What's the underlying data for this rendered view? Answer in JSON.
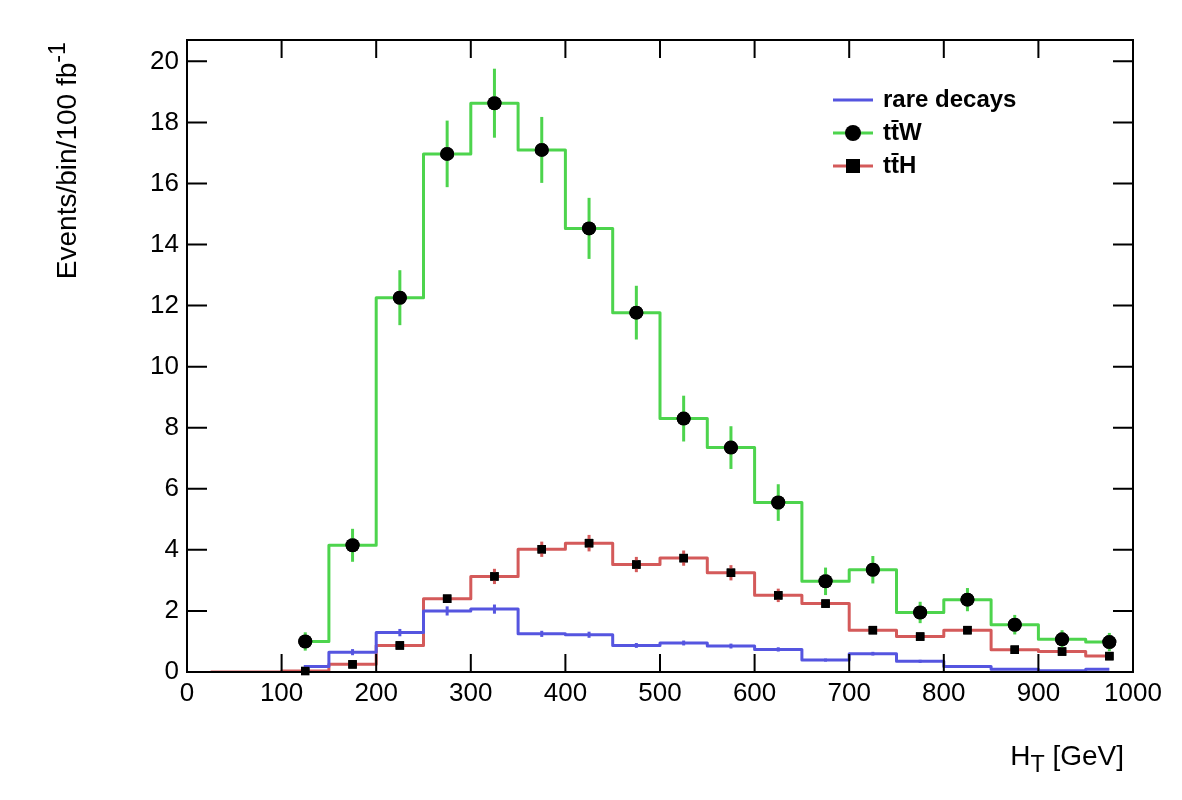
{
  "chart_data": {
    "type": "step",
    "xlabel": "H$_{T}$ [GeV]",
    "ylabel": "Events/bin/100 fb$^{-1}$",
    "x": [
      25,
      75,
      125,
      175,
      225,
      275,
      325,
      375,
      425,
      475,
      525,
      575,
      625,
      675,
      725,
      775,
      825,
      875,
      925,
      975
    ],
    "xlim": [
      0,
      1000
    ],
    "xticks": [
      0,
      100,
      200,
      300,
      400,
      500,
      600,
      700,
      800,
      900,
      1000
    ],
    "ylim": [
      0,
      20.7
    ],
    "yticks": [
      0,
      2,
      4,
      6,
      8,
      10,
      12,
      14,
      16,
      18,
      20
    ],
    "grid": false,
    "legend": "top right",
    "series": [
      {
        "name": "rare decays",
        "color": "#5555e0",
        "marker": "none",
        "values": [
          null,
          null,
          0.18,
          0.65,
          1.29,
          2.0,
          2.06,
          1.25,
          1.22,
          0.87,
          0.95,
          0.85,
          0.74,
          0.39,
          0.6,
          0.35,
          0.18,
          0.09,
          0.04,
          0.09
        ],
        "errors": [
          null,
          null,
          0.05,
          0.1,
          0.12,
          0.15,
          0.15,
          0.1,
          0.1,
          0.08,
          0.08,
          0.08,
          0.07,
          0.05,
          0.06,
          0.05,
          null,
          null,
          null,
          null
        ]
      },
      {
        "name": "tt̄W",
        "color": "#4dd44d",
        "marker": "circle",
        "values": [
          null,
          null,
          1.0,
          4.15,
          12.26,
          16.97,
          18.63,
          17.1,
          14.53,
          11.77,
          8.3,
          7.35,
          5.55,
          2.97,
          3.35,
          1.95,
          2.37,
          1.55,
          1.07,
          0.98
        ],
        "errors": [
          null,
          null,
          0.3,
          0.54,
          0.9,
          1.09,
          1.13,
          1.08,
          1.0,
          0.88,
          0.75,
          0.7,
          0.6,
          0.45,
          0.45,
          0.35,
          0.38,
          0.32,
          0.3,
          0.3
        ]
      },
      {
        "name": "tt̄H",
        "color": "#d45a5a",
        "marker": "square",
        "values": [
          0,
          0,
          0.03,
          0.25,
          0.87,
          2.4,
          3.13,
          4.02,
          4.22,
          3.52,
          3.73,
          3.25,
          2.51,
          2.24,
          1.37,
          1.16,
          1.37,
          0.73,
          0.67,
          0.52
        ],
        "errors": [
          null,
          null,
          null,
          null,
          null,
          null,
          0.25,
          0.25,
          0.27,
          0.25,
          0.25,
          0.25,
          0.22,
          null,
          null,
          null,
          null,
          null,
          null,
          null
        ]
      }
    ]
  }
}
